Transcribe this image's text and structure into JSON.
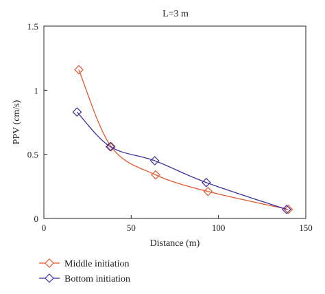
{
  "chart_data": {
    "type": "line",
    "title": "L=3 m",
    "xlabel": "Distance (m)",
    "ylabel": "PPV (cm/s)",
    "xlim": [
      0,
      150
    ],
    "ylim": [
      0,
      1.5
    ],
    "xticks": [
      0,
      50,
      100,
      150
    ],
    "xtick_labels": [
      "0",
      "50",
      "100",
      "150"
    ],
    "yticks": [
      0,
      0.5,
      1,
      1.5
    ],
    "ytick_labels": [
      "0",
      "0.5",
      "1",
      "1.5"
    ],
    "grid": false,
    "legend_position": "bottom-left, below plot",
    "series": [
      {
        "name": "Middle initiation",
        "color": "#e2572c",
        "marker": "diamond",
        "x": [
          20,
          38.5,
          64,
          94,
          140
        ],
        "y": [
          1.16,
          0.56,
          0.34,
          0.21,
          0.07
        ]
      },
      {
        "name": "Bottom initiation",
        "color": "#3a2fa0",
        "marker": "diamond",
        "x": [
          19,
          38,
          63.5,
          93,
          139
        ],
        "y": [
          0.83,
          0.56,
          0.45,
          0.28,
          0.07
        ]
      }
    ]
  }
}
